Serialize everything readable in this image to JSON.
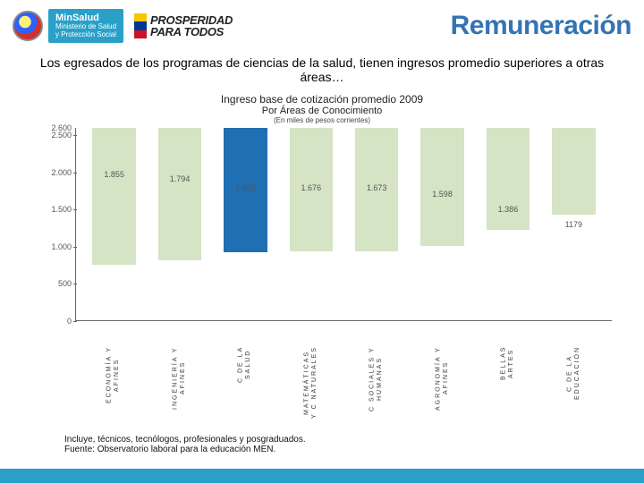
{
  "header": {
    "minsalud_bold": "MinSalud",
    "minsalud_line1": "Ministerio de Salud",
    "minsalud_line2": "y Protección Social",
    "prosperidad_line1": "PROSPERIDAD",
    "prosperidad_line2": "PARA TODOS",
    "flag_colors": [
      "#f7c600",
      "#003893",
      "#ce1126"
    ],
    "title": "Remuneración",
    "title_color": "#3474b2"
  },
  "subtitle": "Los egresados de los programas de ciencias de la salud, tienen ingresos promedio superiores a otras áreas…",
  "chart": {
    "type": "bar",
    "title_line1": "Ingreso base de cotización promedio 2009",
    "title_line2": "Por Áreas de Conocimiento",
    "title_line3": "(En miles de pesos corrientes)",
    "ymax": 2600,
    "ytick_step": 500,
    "yticks": [
      0,
      500,
      1000,
      1500,
      2000,
      2500
    ],
    "ylabels": [
      "0",
      "500",
      "1.000",
      "1.500",
      "2.000",
      "2.500"
    ],
    "ytop_label": "2.600",
    "bar_default_color": "#d5e4c4",
    "bar_highlight_color": "#1f6fb2",
    "axis_color": "#666666",
    "label_color": "#555555",
    "categories": [
      {
        "label": "ECONOMÍA Y\nAFINES",
        "value": 1855,
        "value_label": "1.855",
        "highlight": false
      },
      {
        "label": "INGENIERÍA Y\nAFINES",
        "value": 1794,
        "value_label": "1.794",
        "highlight": false
      },
      {
        "label": "C DE LA\nSALUD",
        "value": 1682,
        "value_label": "1.682",
        "highlight": true
      },
      {
        "label": "MATEMÁTICAS\nY C NATURALES",
        "value": 1676,
        "value_label": "1.676",
        "highlight": false
      },
      {
        "label": "C SOCIALES Y\nHUMANAS",
        "value": 1673,
        "value_label": "1.673",
        "highlight": false
      },
      {
        "label": "AGRONOMÍA Y\nAFINES",
        "value": 1598,
        "value_label": "1.598",
        "highlight": false
      },
      {
        "label": "BELLAS\nARTES",
        "value": 1386,
        "value_label": "1.386",
        "highlight": false
      },
      {
        "label": "C DE LA\nEDUCACIÓN",
        "value": 1179,
        "value_label": "1179",
        "highlight": false
      }
    ]
  },
  "footnotes": {
    "line1": "Incluye, técnicos, tecnólogos, profesionales y posgraduados.",
    "line2": "Fuente: Observatorio laboral para la educación MEN."
  },
  "footer_bar_color": "#2aa0c8"
}
